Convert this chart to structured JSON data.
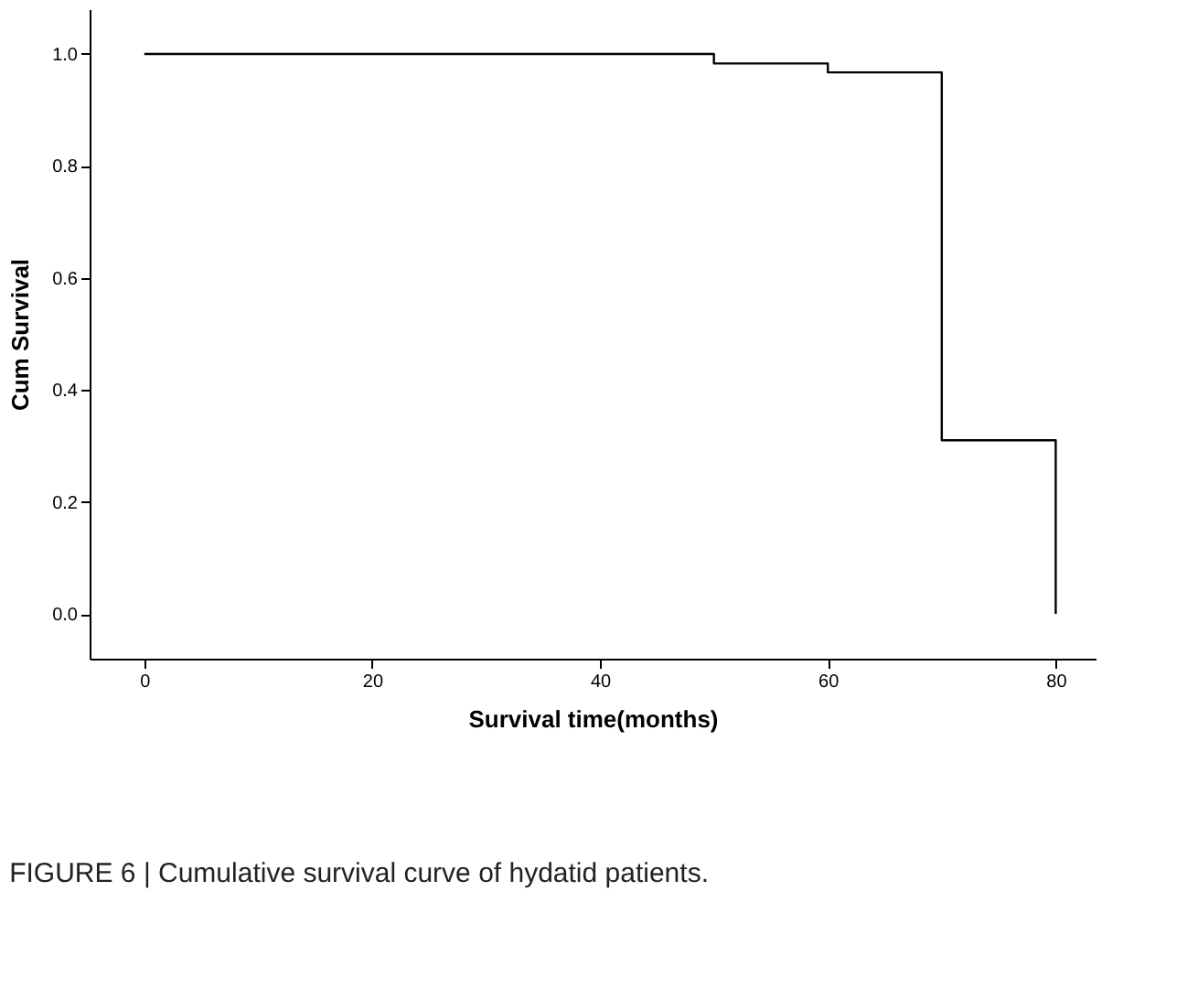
{
  "chart_data": {
    "type": "step",
    "xlabel": "Survival time(months)",
    "ylabel": "Cum Survival",
    "x": [
      0,
      50,
      60,
      70,
      80
    ],
    "series": [
      {
        "color": "#000000",
        "values": [
          1.0,
          0.983,
          0.967,
          0.31,
          0.0
        ]
      }
    ],
    "xlim": [
      -4.8,
      83.5
    ],
    "xticks": [
      0,
      20,
      40,
      60,
      80
    ],
    "ylim": [
      -0.08,
      1.08
    ],
    "yticks": [
      {
        "value": 0,
        "label": "0.0"
      },
      {
        "value": 0.2,
        "label": "0.2"
      },
      {
        "value": 0.4,
        "label": "0.4"
      },
      {
        "value": 0.6,
        "label": "0.6"
      },
      {
        "value": 0.8,
        "label": "0.8"
      },
      {
        "value": 1.0,
        "label": "1.0"
      }
    ],
    "grid": false,
    "line_style": "solid",
    "marker": "none",
    "annotations": [
      "FIGURE 6 | Cumulative survival curve of hydatid patients."
    ]
  }
}
